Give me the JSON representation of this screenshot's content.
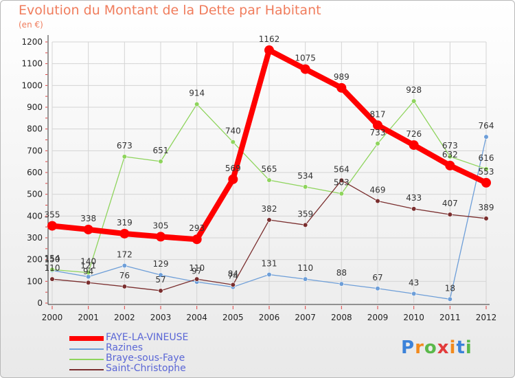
{
  "chart_data": {
    "type": "line",
    "title": "Evolution du Montant de la Dette par Habitant",
    "subtitle": "(en €)",
    "x": [
      "2000",
      "2001",
      "2002",
      "2003",
      "2004",
      "2005",
      "2006",
      "2007",
      "2008",
      "2009",
      "2010",
      "2011",
      "2012"
    ],
    "ylim": [
      0,
      1200
    ],
    "yticks": [
      0,
      100,
      200,
      300,
      400,
      500,
      600,
      700,
      800,
      900,
      1000,
      1100,
      1200
    ],
    "grid": true,
    "legend_position": "bottom-left",
    "series": [
      {
        "name": "FAYE-LA-VINEUSE",
        "color": "#ff0000",
        "highlight": true,
        "values": [
          355,
          338,
          319,
          305,
          293,
          569,
          1162,
          1075,
          989,
          817,
          726,
          632,
          553
        ]
      },
      {
        "name": "Razines",
        "color": "#6d9ed8",
        "values": [
          150,
          121,
          172,
          129,
          97,
          74,
          131,
          110,
          88,
          67,
          43,
          18,
          764
        ]
      },
      {
        "name": "Braye-sous-Faye",
        "color": "#8ed45c",
        "values": [
          154,
          140,
          673,
          651,
          914,
          740,
          565,
          534,
          503,
          733,
          928,
          673,
          616
        ]
      },
      {
        "name": "Saint-Christophe",
        "color": "#7a2e2e",
        "values": [
          110,
          94,
          76,
          57,
          110,
          84,
          382,
          359,
          564,
          469,
          433,
          407,
          389
        ]
      }
    ]
  },
  "logo": {
    "text": "Proxiti"
  }
}
